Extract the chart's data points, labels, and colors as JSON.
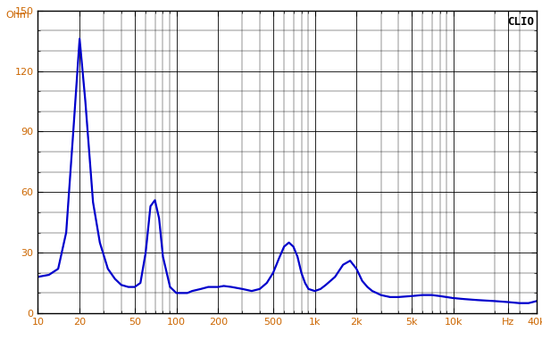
{
  "title": "CLIO",
  "ylabel": "Ohm",
  "line_color": "#0000cc",
  "line_width": 1.6,
  "background_color": "#ffffff",
  "grid_major_color": "#000000",
  "grid_minor_color": "#555555",
  "tick_label_color": "#cc6600",
  "ylim": [
    0,
    150
  ],
  "xlim": [
    10,
    40000
  ],
  "yticks": [
    0,
    30,
    60,
    90,
    120,
    150
  ],
  "ytick_minor_step": 10,
  "xtick_labels": [
    "10",
    "20",
    "50",
    "100",
    "200",
    "500",
    "1k",
    "2k",
    "5k",
    "10k",
    "Hz",
    "40k"
  ],
  "xtick_positions": [
    10,
    20,
    50,
    100,
    200,
    500,
    1000,
    2000,
    5000,
    10000,
    25000,
    40000
  ],
  "curve_points": [
    [
      10,
      18
    ],
    [
      12,
      19
    ],
    [
      14,
      22
    ],
    [
      16,
      40
    ],
    [
      18,
      90
    ],
    [
      20,
      136
    ],
    [
      22,
      105
    ],
    [
      25,
      55
    ],
    [
      28,
      35
    ],
    [
      32,
      22
    ],
    [
      36,
      17
    ],
    [
      40,
      14
    ],
    [
      45,
      13
    ],
    [
      50,
      13
    ],
    [
      55,
      15
    ],
    [
      60,
      30
    ],
    [
      65,
      53
    ],
    [
      70,
      56
    ],
    [
      75,
      47
    ],
    [
      80,
      28
    ],
    [
      90,
      13
    ],
    [
      100,
      10
    ],
    [
      110,
      10
    ],
    [
      120,
      10
    ],
    [
      130,
      11
    ],
    [
      150,
      12
    ],
    [
      170,
      13
    ],
    [
      200,
      13
    ],
    [
      220,
      13.5
    ],
    [
      250,
      13
    ],
    [
      300,
      12
    ],
    [
      350,
      11
    ],
    [
      400,
      12
    ],
    [
      450,
      15
    ],
    [
      500,
      20
    ],
    [
      550,
      27
    ],
    [
      600,
      33
    ],
    [
      650,
      35
    ],
    [
      700,
      33
    ],
    [
      750,
      28
    ],
    [
      800,
      20
    ],
    [
      850,
      15
    ],
    [
      900,
      12
    ],
    [
      1000,
      11
    ],
    [
      1100,
      12
    ],
    [
      1200,
      14
    ],
    [
      1400,
      18
    ],
    [
      1600,
      24
    ],
    [
      1800,
      26
    ],
    [
      2000,
      22
    ],
    [
      2200,
      16
    ],
    [
      2400,
      13
    ],
    [
      2600,
      11
    ],
    [
      2800,
      10
    ],
    [
      3000,
      9
    ],
    [
      3500,
      8
    ],
    [
      4000,
      8
    ],
    [
      5000,
      8.5
    ],
    [
      6000,
      9
    ],
    [
      7000,
      9
    ],
    [
      8000,
      8.5
    ],
    [
      10000,
      7.5
    ],
    [
      12000,
      7
    ],
    [
      15000,
      6.5
    ],
    [
      20000,
      6
    ],
    [
      25000,
      5.5
    ],
    [
      30000,
      5
    ],
    [
      35000,
      5
    ],
    [
      40000,
      6
    ]
  ]
}
